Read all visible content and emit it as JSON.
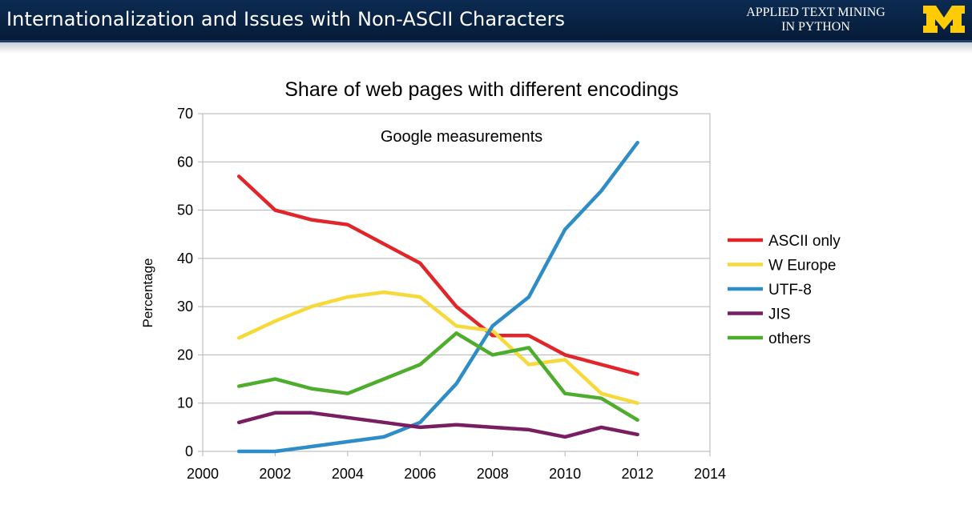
{
  "header": {
    "title": "Internationalization and Issues with Non-ASCII Characters",
    "course_line1": "APPLIED TEXT MINING",
    "course_line2": "IN PYTHON",
    "logo_icon": "michigan-block-m-logo",
    "logo_color": "#FFCB05",
    "bar_color": "#0B2A50"
  },
  "chart_data": {
    "type": "line",
    "title": "Share of web pages with different encodings",
    "annotation": "Google measurements",
    "xlabel": "",
    "ylabel": "Percentage",
    "xlim": [
      2000,
      2014
    ],
    "ylim": [
      0,
      70
    ],
    "xticks": [
      2000,
      2002,
      2004,
      2006,
      2008,
      2010,
      2012,
      2014
    ],
    "yticks": [
      0,
      10,
      20,
      30,
      40,
      50,
      60,
      70
    ],
    "grid": "horizontal",
    "legend_position": "right",
    "x": [
      2001,
      2002,
      2003,
      2004,
      2005,
      2006,
      2007,
      2008,
      2009,
      2010,
      2011,
      2012
    ],
    "series": [
      {
        "name": "ASCII only",
        "color": "#E0262A",
        "values": [
          57,
          50,
          48,
          47,
          43,
          39,
          30,
          24,
          24,
          20,
          18,
          16
        ]
      },
      {
        "name": "W Europe",
        "color": "#F6D93A",
        "values": [
          23.5,
          27,
          30,
          32,
          33,
          32,
          26,
          25,
          18,
          19,
          12,
          10
        ]
      },
      {
        "name": "UTF-8",
        "color": "#2E8CC7",
        "values": [
          0,
          0,
          1,
          2,
          3,
          6,
          14,
          26,
          32,
          46,
          54,
          64
        ]
      },
      {
        "name": "JIS",
        "color": "#7A1E63",
        "values": [
          6,
          8,
          8,
          7,
          6,
          5,
          5.5,
          5,
          4.5,
          3,
          5,
          3.5
        ]
      },
      {
        "name": "others",
        "color": "#4EAD2D",
        "values": [
          13.5,
          15,
          13,
          12,
          15,
          18,
          24.5,
          20,
          21.5,
          12,
          11,
          6.5
        ]
      }
    ]
  }
}
